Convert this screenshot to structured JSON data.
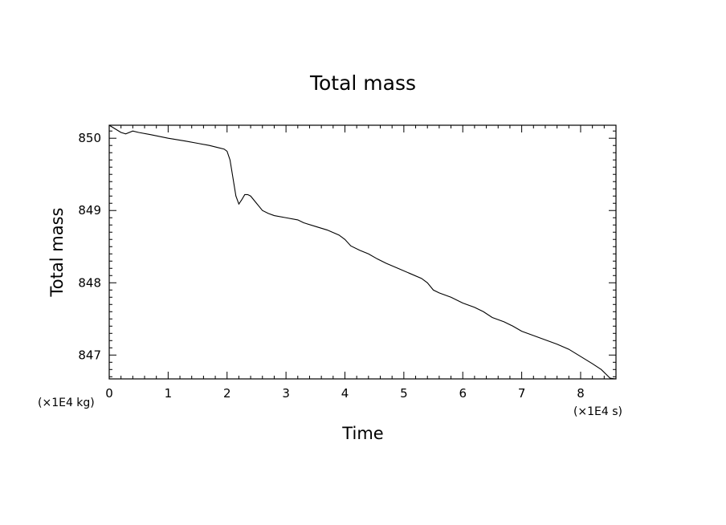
{
  "chart_data": {
    "type": "line",
    "title": "Total mass",
    "xlabel": "Time",
    "ylabel": "Total mass",
    "x_unit": "(×1E4 s)",
    "y_unit": "(×1E4 kg)",
    "xlim": [
      0,
      8.6
    ],
    "ylim": [
      846.67,
      850.18
    ],
    "x_ticks": [
      0,
      1,
      2,
      3,
      4,
      5,
      6,
      7,
      8
    ],
    "y_ticks": [
      847,
      848,
      849,
      850
    ],
    "grid": false,
    "legend": "none",
    "series": [
      {
        "color": "#000000",
        "x": [
          0,
          0.1,
          0.2,
          0.28,
          0.4,
          0.5,
          0.7,
          1.0,
          1.3,
          1.5,
          1.7,
          1.85,
          1.95,
          2.0,
          2.05,
          2.1,
          2.15,
          2.2,
          2.25,
          2.3,
          2.35,
          2.4,
          2.5,
          2.6,
          2.7,
          2.8,
          3.0,
          3.2,
          3.3,
          3.5,
          3.7,
          3.9,
          4.0,
          4.1,
          4.25,
          4.4,
          4.55,
          4.7,
          4.9,
          5.1,
          5.3,
          5.4,
          5.5,
          5.6,
          5.8,
          6.0,
          6.2,
          6.35,
          6.5,
          6.7,
          6.85,
          7.0,
          7.2,
          7.4,
          7.6,
          7.8,
          8.0,
          8.2,
          8.35,
          8.45,
          8.5,
          8.6
        ],
        "y": [
          850.18,
          850.13,
          850.08,
          850.06,
          850.1,
          850.08,
          850.05,
          850.0,
          849.96,
          849.93,
          849.9,
          849.87,
          849.85,
          849.82,
          849.7,
          849.45,
          849.2,
          849.09,
          849.15,
          849.22,
          849.22,
          849.2,
          849.1,
          849.0,
          848.96,
          848.93,
          848.9,
          848.87,
          848.83,
          848.78,
          848.73,
          848.66,
          848.6,
          848.51,
          848.45,
          848.4,
          848.33,
          848.27,
          848.2,
          848.13,
          848.06,
          848.0,
          847.9,
          847.86,
          847.8,
          847.72,
          847.66,
          847.6,
          847.52,
          847.46,
          847.4,
          847.33,
          847.27,
          847.21,
          847.15,
          847.08,
          846.98,
          846.88,
          846.8,
          846.72,
          846.68,
          846.67
        ]
      }
    ]
  }
}
